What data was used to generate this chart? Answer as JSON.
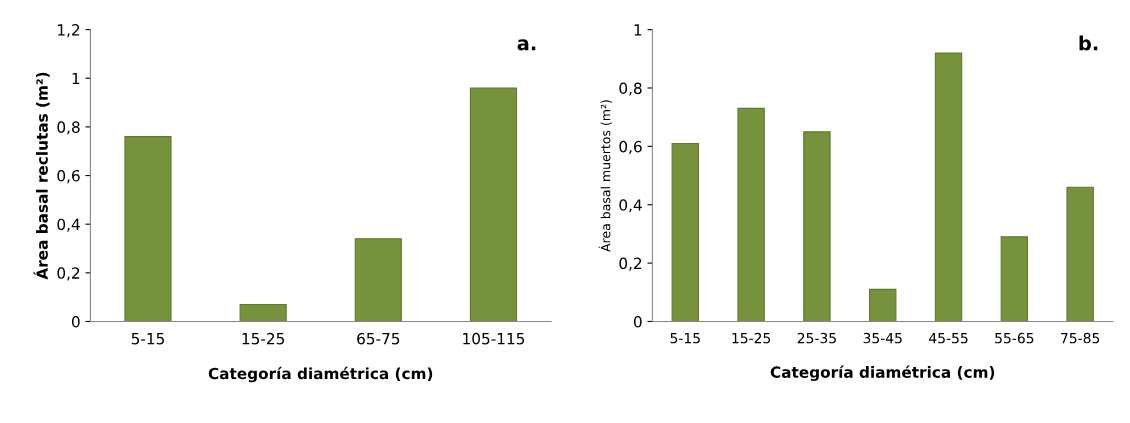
{
  "chart_data": [
    {
      "type": "bar",
      "categories": [
        "5-15",
        "15-25",
        "65-75",
        "105-115"
      ],
      "values": [
        0.76,
        0.07,
        0.34,
        0.96
      ],
      "color": "#76923c",
      "xlabel": "Categoría diamétrica (cm)",
      "ylabel": "Área basal reclutas (m²)",
      "ylim": [
        0,
        1.2
      ],
      "yticks": [
        {
          "value": 0,
          "label": "0"
        },
        {
          "value": 0.2,
          "label": "0,2"
        },
        {
          "value": 0.4,
          "label": "0,4"
        },
        {
          "value": 0.6,
          "label": "0,6"
        },
        {
          "value": 0.8,
          "label": "0,8"
        },
        {
          "value": 1,
          "label": "1"
        },
        {
          "value": 1.2,
          "label": "1,2"
        }
      ],
      "grid": false,
      "legend": false,
      "annotations": [
        "a."
      ]
    },
    {
      "type": "bar",
      "categories": [
        "5-15",
        "15-25",
        "25-35",
        "35-45",
        "45-55",
        "55-65",
        "75-85"
      ],
      "values": [
        0.61,
        0.73,
        0.65,
        0.11,
        0.92,
        0.29,
        0.46
      ],
      "color": "#76923c",
      "xlabel": "Categoría diamétrica (cm)",
      "ylabel": "Área basal muertos (m²)",
      "ylim": [
        0,
        1
      ],
      "yticks": [
        {
          "value": 0,
          "label": "0"
        },
        {
          "value": 0.2,
          "label": "0,2"
        },
        {
          "value": 0.4,
          "label": "0,4"
        },
        {
          "value": 0.6,
          "label": "0,6"
        },
        {
          "value": 0.8,
          "label": "0,8"
        },
        {
          "value": 1,
          "label": "1"
        }
      ],
      "grid": false,
      "legend": false,
      "annotations": [
        "b."
      ]
    }
  ]
}
